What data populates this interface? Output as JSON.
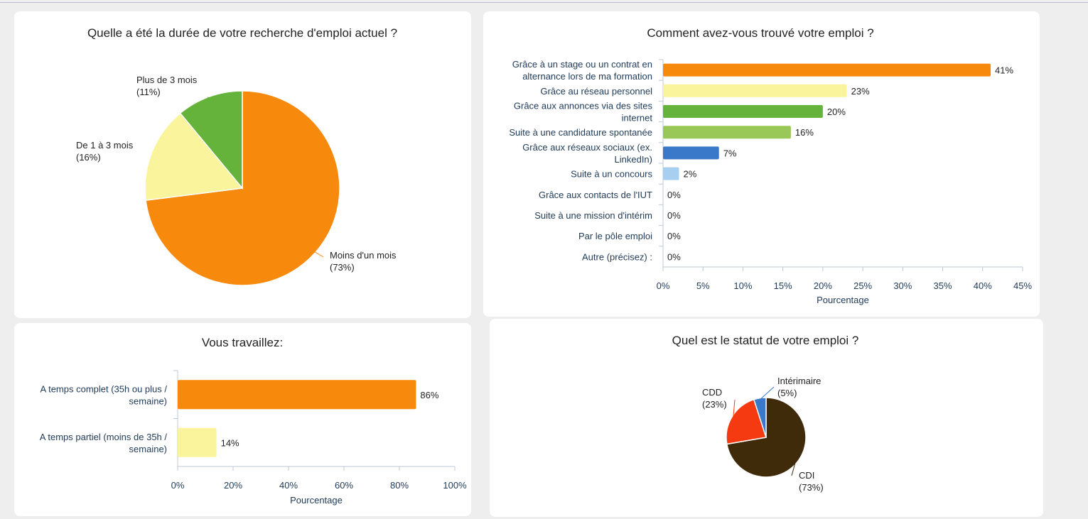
{
  "chart_data": [
    {
      "type": "pie",
      "title": "Quelle a été la durée de votre recherche d'emploi actuel ?",
      "slices": [
        {
          "label": "Moins d'un mois",
          "value": 73,
          "pct_text": "(73%)",
          "color": "#f7890d"
        },
        {
          "label": "De 1 à 3 mois",
          "value": 16,
          "pct_text": "(16%)",
          "color": "#faf59c"
        },
        {
          "label": "Plus de 3 mois",
          "value": 11,
          "pct_text": "(11%)",
          "color": "#66b33b"
        }
      ]
    },
    {
      "type": "bar",
      "orientation": "horizontal",
      "title": "Comment avez-vous trouvé votre emploi ?",
      "xlabel": "Pourcentage",
      "xlim": [
        0,
        45
      ],
      "xticks": [
        "0%",
        "5%",
        "10%",
        "15%",
        "20%",
        "25%",
        "30%",
        "35%",
        "40%",
        "45%"
      ],
      "categories": [
        [
          "Grâce à un stage ou un contrat en",
          "alternance lors de ma formation"
        ],
        [
          "Grâce au réseau personnel"
        ],
        [
          "Grâce aux annonces via des sites",
          "internet"
        ],
        [
          "Suite à une candidature spontanée"
        ],
        [
          "Grâce aux réseaux sociaux (ex.",
          "LinkedIn)"
        ],
        [
          "Suite à un concours"
        ],
        [
          "Grâce aux contacts de l'IUT"
        ],
        [
          "Suite à une mission d'intérim"
        ],
        [
          "Par le pôle emploi"
        ],
        [
          "Autre (précisez) :"
        ]
      ],
      "values": [
        41,
        23,
        20,
        16,
        7,
        2,
        0,
        0,
        0,
        0
      ],
      "value_labels": [
        "41%",
        "23%",
        "20%",
        "16%",
        "7%",
        "2%",
        "0%",
        "0%",
        "0%",
        "0%"
      ],
      "colors": [
        "#f7890d",
        "#faf59c",
        "#66b33b",
        "#99c859",
        "#3a78c9",
        "#a7d0f0",
        "#cccccc",
        "#cccccc",
        "#cccccc",
        "#cccccc"
      ]
    },
    {
      "type": "bar",
      "orientation": "horizontal",
      "title": "Vous travaillez:",
      "xlabel": "Pourcentage",
      "xlim": [
        0,
        100
      ],
      "xticks": [
        "0%",
        "20%",
        "40%",
        "60%",
        "80%",
        "100%"
      ],
      "categories": [
        [
          "A temps complet (35h ou plus /",
          "semaine)"
        ],
        [
          "A temps partiel (moins de 35h /",
          "semaine)"
        ]
      ],
      "values": [
        86,
        14
      ],
      "value_labels": [
        "86%",
        "14%"
      ],
      "colors": [
        "#f7890d",
        "#faf59c"
      ]
    },
    {
      "type": "pie",
      "title": "Quel est le statut de votre emploi ?",
      "slices": [
        {
          "label": "CDI",
          "value": 73,
          "pct_text": "(73%)",
          "color": "#3f2a0a"
        },
        {
          "label": "CDD",
          "value": 23,
          "pct_text": "(23%)",
          "color": "#f53a12"
        },
        {
          "label": "Intérimaire",
          "value": 5,
          "pct_text": "(5%)",
          "color": "#3a78c9"
        }
      ]
    }
  ]
}
